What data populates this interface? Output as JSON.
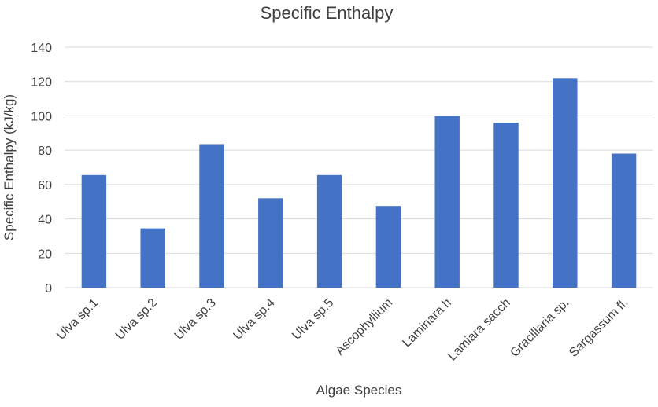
{
  "chart_data": {
    "type": "bar",
    "title": "Specific Enthalpy",
    "xlabel": "Algae Species",
    "ylabel": "Specific  Enthalpy  (kJ/kg)",
    "categories": [
      "Ulva sp.1",
      "Ulva sp.2",
      "Ulva sp.3",
      "Ulva sp.4",
      "Ulva sp.5",
      "Ascophyllium",
      "Laminara h",
      "Lamiara sacch",
      "Graciliaria sp.",
      "Sargassum fl."
    ],
    "values": [
      65.5,
      34.5,
      83.5,
      52,
      65.5,
      47.5,
      100,
      96,
      122,
      78
    ],
    "ylim": [
      0,
      140
    ],
    "yticks": [
      0,
      20,
      40,
      60,
      80,
      100,
      120,
      140
    ],
    "grid": true,
    "bar_color": "#4472c4",
    "grid_color": "#d9d9d9",
    "text_color": "#404040"
  }
}
